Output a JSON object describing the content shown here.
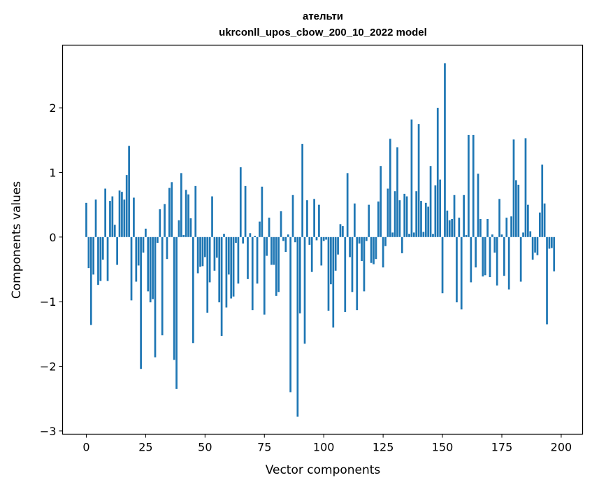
{
  "chart_data": {
    "type": "bar",
    "title_line1": "ательти",
    "title_line2": "ukrconll_upos_cbow_200_10_2022 model",
    "xlabel": "Vector components",
    "ylabel": "Components values",
    "xlim": [
      -10,
      209
    ],
    "ylim": [
      -3.05,
      2.97
    ],
    "xticks": [
      0,
      25,
      50,
      75,
      100,
      125,
      150,
      175,
      200
    ],
    "xtick_labels": [
      "0",
      "25",
      "50",
      "75",
      "100",
      "125",
      "150",
      "175",
      "200"
    ],
    "yticks": [
      -3,
      -2,
      -1,
      0,
      1,
      2
    ],
    "ytick_labels": [
      "−3",
      "−2",
      "−1",
      "0",
      "1",
      "2"
    ],
    "bar_color": "#1f77b4",
    "values": [
      0.53,
      -0.48,
      -1.36,
      -0.58,
      0.58,
      -0.74,
      -0.68,
      -0.35,
      0.75,
      -0.68,
      0.56,
      0.63,
      0.19,
      -0.43,
      0.72,
      0.7,
      0.58,
      0.96,
      1.41,
      -0.98,
      0.61,
      -0.69,
      -0.44,
      -2.04,
      -0.24,
      0.13,
      -0.84,
      -1.01,
      -0.96,
      -1.86,
      -0.09,
      0.43,
      -1.52,
      0.51,
      -0.34,
      0.76,
      0.85,
      -1.9,
      -2.35,
      0.26,
      0.99,
      0.03,
      0.73,
      0.66,
      0.29,
      -1.64,
      0.79,
      -0.56,
      -0.46,
      -0.45,
      -0.31,
      -1.17,
      -0.7,
      0.63,
      -0.52,
      -0.32,
      -1.01,
      -1.53,
      0.05,
      -1.09,
      -0.58,
      -0.95,
      -0.92,
      -0.09,
      -0.72,
      1.08,
      -0.1,
      0.79,
      -0.65,
      0.06,
      -1.13,
      0.02,
      -0.72,
      0.24,
      0.78,
      -1.2,
      -0.29,
      0.3,
      -0.43,
      -0.43,
      -0.91,
      -0.85,
      0.4,
      -0.06,
      -0.23,
      0.04,
      -2.4,
      0.65,
      -0.08,
      -2.78,
      -1.18,
      1.44,
      -1.65,
      0.57,
      -0.12,
      -0.54,
      0.59,
      -0.05,
      0.5,
      -0.44,
      -0.06,
      -0.04,
      -1.14,
      -0.73,
      -1.4,
      -0.52,
      -0.27,
      0.2,
      0.17,
      -1.16,
      0.99,
      -0.31,
      -0.85,
      0.52,
      -1.13,
      -0.1,
      -0.37,
      -0.84,
      -0.06,
      0.5,
      -0.4,
      -0.42,
      -0.34,
      0.55,
      1.1,
      -0.47,
      -0.14,
      0.75,
      1.52,
      0.07,
      0.71,
      1.39,
      0.57,
      -0.25,
      0.67,
      0.63,
      0.05,
      1.82,
      0.07,
      0.71,
      1.75,
      0.56,
      0.08,
      0.53,
      0.47,
      1.1,
      0.05,
      0.8,
      2.0,
      0.89,
      -0.87,
      2.69,
      0.41,
      0.26,
      0.28,
      0.65,
      -1.01,
      0.3,
      -1.12,
      0.65,
      0.03,
      1.58,
      -0.7,
      1.58,
      -0.47,
      0.98,
      0.28,
      -0.61,
      -0.59,
      0.28,
      -0.62,
      0.04,
      -0.24,
      -0.75,
      0.59,
      0.04,
      -0.6,
      0.3,
      -0.81,
      0.32,
      1.51,
      0.88,
      0.81,
      -0.69,
      0.07,
      1.53,
      0.5,
      0.09,
      -0.35,
      -0.24,
      -0.28,
      0.38,
      1.12,
      0.52,
      -1.35,
      -0.18,
      -0.17,
      -0.53
    ]
  }
}
